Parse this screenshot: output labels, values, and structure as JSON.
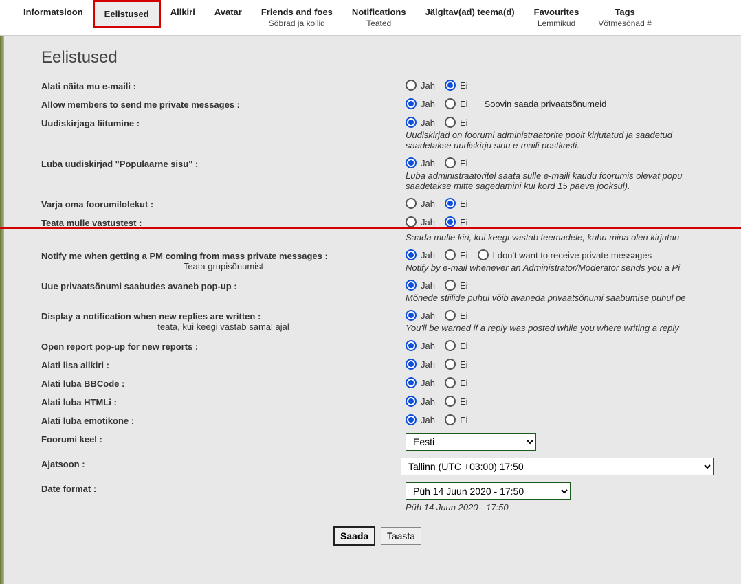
{
  "tabs": [
    {
      "label": "Informatsioon",
      "sub": ""
    },
    {
      "label": "Eelistused",
      "sub": ""
    },
    {
      "label": "Allkiri",
      "sub": ""
    },
    {
      "label": "Avatar",
      "sub": ""
    },
    {
      "label": "Friends and foes",
      "sub": "Sõbrad ja kollid"
    },
    {
      "label": "Notifications",
      "sub": "Teated"
    },
    {
      "label": "Jälgitav(ad) teema(d)",
      "sub": ""
    },
    {
      "label": "Favourites",
      "sub": "Lemmikud"
    },
    {
      "label": "Tags",
      "sub": "Võtmesõnad #"
    }
  ],
  "opt": {
    "yes": "Jah",
    "no": "Ei"
  },
  "title": "Eelistused",
  "rows": {
    "r1": {
      "label": "Alati näita mu e-maili :",
      "selected": "no"
    },
    "r2": {
      "label": "Allow members to send me private messages :",
      "selected": "yes",
      "extra": "Soovin saada privaatsõnumeid"
    },
    "r3": {
      "label": "Uudiskirjaga liitumine :",
      "selected": "yes",
      "desc": "Uudiskirjad on foorumi administraatorite poolt kirjutatud ja saadetud saadetakse uudiskirju sinu e-maili postkasti."
    },
    "r4": {
      "label": "Luba uudiskirjad \"Populaarne sisu\" :",
      "selected": "yes",
      "desc": "Luba administraatoritel saata sulle e-maili kaudu foorumis olevat popu saadetakse mitte sagedamini kui kord 15 päeva jooksul)."
    },
    "r5": {
      "label": "Varja oma foorumilolekut :",
      "selected": "no"
    },
    "r6": {
      "label": "Teata mulle vastustest :",
      "selected": "no",
      "desc": "Saada mulle kiri, kui keegi vastab teemadele, kuhu mina olen kirjutan"
    },
    "r7": {
      "label": "Notify me when getting a PM coming from mass private messages :",
      "sublabel": "Teata grupisõnumist",
      "selected": "yes",
      "third": "I don't want to receive private messages",
      "desc": "Notify by e-mail whenever an Administrator/Moderator sends you a Pi"
    },
    "r8": {
      "label": "Uue privaatsõnumi saabudes avaneb pop-up :",
      "selected": "yes",
      "desc": "Mõnede stiilide puhul võib avaneda privaatsõnumi saabumise puhul pe"
    },
    "r9": {
      "label": "Display a notification when new replies are written :",
      "sublabel": "teata, kui keegi vastab samal ajal",
      "selected": "yes",
      "desc": "You'll be warned if a reply was posted while you where writing a reply"
    },
    "r10": {
      "label": "Open report pop-up for new reports :",
      "selected": "yes"
    },
    "r11": {
      "label": "Alati lisa allkiri :",
      "selected": "yes"
    },
    "r12": {
      "label": "Alati luba BBCode :",
      "selected": "yes"
    },
    "r13": {
      "label": "Alati luba HTMLi :",
      "selected": "yes"
    },
    "r14": {
      "label": "Alati luba emotikone :",
      "selected": "yes"
    },
    "r15": {
      "label": "Foorumi keel :",
      "value": "Eesti"
    },
    "r16": {
      "label": "Ajatsoon :",
      "value": "Tallinn (UTC +03:00) 17:50"
    },
    "r17": {
      "label": "Date format :",
      "value": "Püh 14 Juun 2020 - 17:50",
      "desc": "Püh 14 Juun 2020 - 17:50"
    }
  },
  "buttons": {
    "submit": "Saada",
    "reset": "Taasta"
  }
}
